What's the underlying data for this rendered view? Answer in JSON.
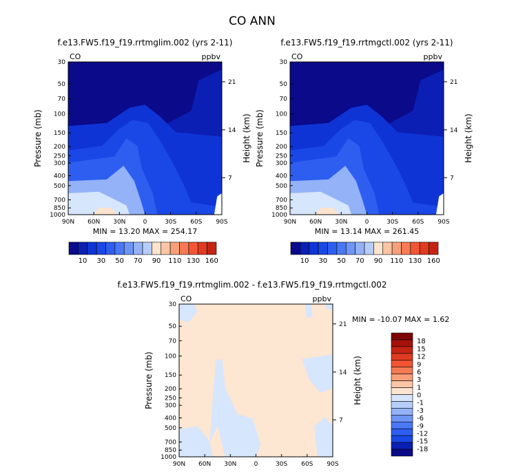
{
  "title": "CO ANN",
  "palette": {
    "blues": [
      "#0a0a8a",
      "#0b1fb5",
      "#0f34d6",
      "#1a48e6",
      "#2e5ef0",
      "#4a78f4",
      "#6e95f6",
      "#93b2f8",
      "#b6cdfa",
      "#d6e6fd"
    ],
    "reds": [
      "#fde4cf",
      "#fbc6a6",
      "#f8a07a",
      "#f57a55",
      "#f15534",
      "#e03a20",
      "#c52414",
      "#a4120a",
      "#7e0505"
    ],
    "diff_zero": "#fde6d2",
    "diff_neg": "#d6e6fd"
  },
  "chart_data": [
    {
      "type": "heatmap",
      "name": "panel-1",
      "title": "f.e13.FW5.f19_f19.rrtmglim.002 (yrs 2-11)",
      "field_label": "CO",
      "units_label": "ppbv",
      "xlabel": "",
      "ylabel": "Pressure (mb)",
      "y2label": "Height (km)",
      "x_ticks": [
        "90N",
        "60N",
        "30N",
        "0",
        "30S",
        "60S",
        "90S"
      ],
      "y_ticks": [
        "30",
        "50",
        "70",
        "100",
        "150",
        "200",
        "250",
        "300",
        "400",
        "500",
        "700",
        "850",
        "1000"
      ],
      "y2_ticks": [
        "21",
        "14",
        "7"
      ],
      "stats_text": "MIN =   13.20   MAX = 254.17",
      "min": 13.2,
      "max": 254.17,
      "colorbar_labels": [
        "10",
        "30",
        "50",
        "70",
        "90",
        "110",
        "130",
        "160"
      ]
    },
    {
      "type": "heatmap",
      "name": "panel-2",
      "title": "f.e13.FW5.f19_f19.rrtmgctl.002 (yrs 2-11)",
      "field_label": "CO",
      "units_label": "ppbv",
      "xlabel": "",
      "ylabel": "Pressure (mb)",
      "y2label": "Height (km)",
      "x_ticks": [
        "90N",
        "60N",
        "30N",
        "0",
        "30S",
        "60S",
        "90S"
      ],
      "y_ticks": [
        "30",
        "50",
        "70",
        "100",
        "150",
        "200",
        "250",
        "300",
        "400",
        "500",
        "700",
        "850",
        "1000"
      ],
      "y2_ticks": [
        "21",
        "14",
        "7"
      ],
      "stats_text": "MIN =   13.14   MAX = 261.45",
      "min": 13.14,
      "max": 261.45,
      "colorbar_labels": [
        "10",
        "30",
        "50",
        "70",
        "90",
        "110",
        "130",
        "160"
      ]
    },
    {
      "type": "heatmap",
      "name": "panel-diff",
      "title": "f.e13.FW5.f19_f19.rrtmglim.002 - f.e13.FW5.f19_f19.rrtmgctl.002",
      "field_label": "CO",
      "units_label": "ppbv",
      "xlabel": "",
      "ylabel": "Pressure (mb)",
      "y2label": "Height (km)",
      "x_ticks": [
        "90N",
        "60N",
        "30N",
        "0",
        "30S",
        "60S",
        "90S"
      ],
      "y_ticks": [
        "30",
        "50",
        "70",
        "100",
        "150",
        "200",
        "250",
        "300",
        "400",
        "500",
        "700",
        "850",
        "1000"
      ],
      "y2_ticks": [
        "21",
        "14",
        "7"
      ],
      "stats_text": "MIN =  -10.07   MAX =     1.62",
      "min": -10.07,
      "max": 1.62,
      "colorbar_labels": [
        "18",
        "15",
        "12",
        "9",
        "6",
        "3",
        "1",
        "0",
        "-1",
        "-3",
        "-6",
        "-9",
        "-12",
        "-15",
        "-18"
      ]
    }
  ]
}
